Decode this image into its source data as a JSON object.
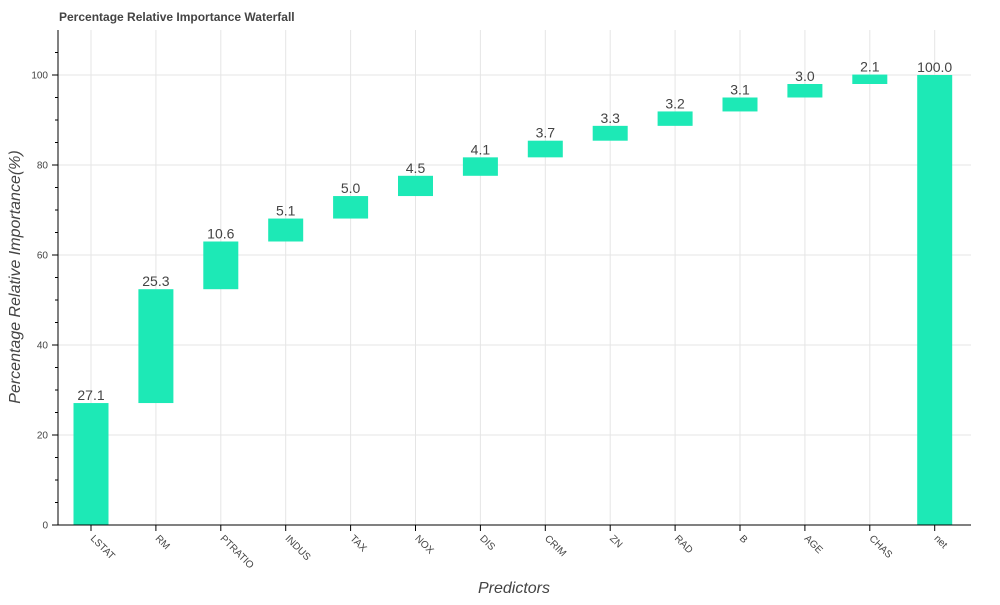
{
  "chart_data": {
    "type": "bar",
    "subtype": "waterfall",
    "title": "Percentage Relative Importance Waterfall",
    "xlabel": "Predictors",
    "ylabel": "Percentage Relative Importance(%)",
    "categories": [
      "LSTAT",
      "RM",
      "PTRATIO",
      "INDUS",
      "TAX",
      "NOX",
      "DIS",
      "CRIM",
      "ZN",
      "RAD",
      "B",
      "AGE",
      "CHAS",
      "net"
    ],
    "values": [
      27.1,
      25.3,
      10.6,
      5.1,
      5.0,
      4.5,
      4.1,
      3.7,
      3.3,
      3.2,
      3.1,
      3.0,
      2.1,
      100.0
    ],
    "value_labels": [
      "27.1",
      "25.3",
      "10.6",
      "5.1",
      "5.0",
      "4.5",
      "4.1",
      "3.7",
      "3.3",
      "3.2",
      "3.1",
      "3.0",
      "2.1",
      "100.0"
    ],
    "ylim": [
      0,
      110
    ],
    "yticks": [
      0,
      20,
      40,
      60,
      80,
      100
    ],
    "grid": true,
    "bar_color": "#1de9b6",
    "text_color": "#444444"
  }
}
